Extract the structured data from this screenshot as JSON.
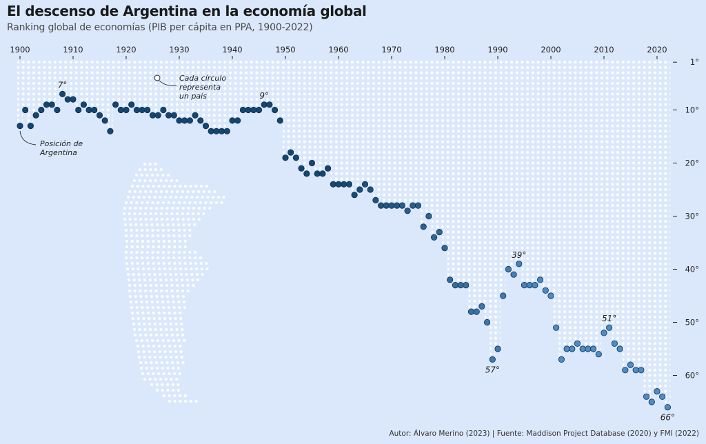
{
  "header": {
    "title": "El descenso de Argentina en la economía global",
    "subtitle": "Ranking global de economías (PIB per cápita en PPA, 1900-2022)"
  },
  "footer": {
    "credit": "Autor: Álvaro Merino (2023) | Fuente: Maddison Project Database (2020) y FMI (2022)"
  },
  "annotations": {
    "circle_note": [
      "Cada círculo",
      "representa",
      "un país"
    ],
    "position_note": [
      "Posición de",
      "Argentina"
    ]
  },
  "colors": {
    "background": "#dbe8fb",
    "grid_dot": "#ffffff",
    "early": "#15466f",
    "late": "#4d8cc8",
    "stroke": "#0d2d4d"
  },
  "chart_data": {
    "type": "scatter",
    "title": "El descenso de Argentina en la economía global",
    "subtitle": "Ranking global de economías (PIB per cápita en PPA, 1900-2022)",
    "xlabel": "",
    "ylabel": "",
    "xlim": [
      1900,
      2022
    ],
    "ylim": [
      1,
      66
    ],
    "y_inverted": true,
    "x_ticks": [
      1900,
      1910,
      1920,
      1930,
      1940,
      1950,
      1960,
      1970,
      1980,
      1990,
      2000,
      2010,
      2020
    ],
    "y_ticks": [
      1,
      10,
      20,
      30,
      40,
      50,
      60
    ],
    "y_tick_labels": [
      "1°",
      "10°",
      "20°",
      "30°",
      "40°",
      "50°",
      "60°"
    ],
    "series": [
      {
        "name": "Posición de Argentina",
        "points": [
          [
            1900,
            13
          ],
          [
            1901,
            10
          ],
          [
            1902,
            13
          ],
          [
            1903,
            11
          ],
          [
            1904,
            10
          ],
          [
            1905,
            9
          ],
          [
            1906,
            9
          ],
          [
            1907,
            10
          ],
          [
            1908,
            7
          ],
          [
            1909,
            8
          ],
          [
            1910,
            8
          ],
          [
            1911,
            10
          ],
          [
            1912,
            9
          ],
          [
            1913,
            10
          ],
          [
            1914,
            10
          ],
          [
            1915,
            11
          ],
          [
            1916,
            12
          ],
          [
            1917,
            14
          ],
          [
            1918,
            9
          ],
          [
            1919,
            10
          ],
          [
            1920,
            10
          ],
          [
            1921,
            9
          ],
          [
            1922,
            10
          ],
          [
            1923,
            10
          ],
          [
            1924,
            10
          ],
          [
            1925,
            11
          ],
          [
            1926,
            11
          ],
          [
            1927,
            10
          ],
          [
            1928,
            11
          ],
          [
            1929,
            11
          ],
          [
            1930,
            12
          ],
          [
            1931,
            12
          ],
          [
            1932,
            12
          ],
          [
            1933,
            11
          ],
          [
            1934,
            12
          ],
          [
            1935,
            13
          ],
          [
            1936,
            14
          ],
          [
            1937,
            14
          ],
          [
            1938,
            14
          ],
          [
            1939,
            14
          ],
          [
            1940,
            12
          ],
          [
            1941,
            12
          ],
          [
            1942,
            10
          ],
          [
            1943,
            10
          ],
          [
            1944,
            10
          ],
          [
            1945,
            10
          ],
          [
            1946,
            9
          ],
          [
            1947,
            9
          ],
          [
            1948,
            10
          ],
          [
            1949,
            12
          ],
          [
            1950,
            19
          ],
          [
            1951,
            18
          ],
          [
            1952,
            19
          ],
          [
            1953,
            21
          ],
          [
            1954,
            22
          ],
          [
            1955,
            20
          ],
          [
            1956,
            22
          ],
          [
            1957,
            22
          ],
          [
            1958,
            21
          ],
          [
            1959,
            24
          ],
          [
            1960,
            24
          ],
          [
            1961,
            24
          ],
          [
            1962,
            24
          ],
          [
            1963,
            26
          ],
          [
            1964,
            25
          ],
          [
            1965,
            24
          ],
          [
            1966,
            25
          ],
          [
            1967,
            27
          ],
          [
            1968,
            28
          ],
          [
            1969,
            28
          ],
          [
            1970,
            28
          ],
          [
            1971,
            28
          ],
          [
            1972,
            28
          ],
          [
            1973,
            29
          ],
          [
            1974,
            28
          ],
          [
            1975,
            28
          ],
          [
            1976,
            32
          ],
          [
            1977,
            30
          ],
          [
            1978,
            34
          ],
          [
            1979,
            33
          ],
          [
            1980,
            36
          ],
          [
            1981,
            42
          ],
          [
            1982,
            43
          ],
          [
            1983,
            43
          ],
          [
            1984,
            43
          ],
          [
            1985,
            48
          ],
          [
            1986,
            48
          ],
          [
            1987,
            47
          ],
          [
            1988,
            50
          ],
          [
            1989,
            57
          ],
          [
            1990,
            55
          ],
          [
            1991,
            45
          ],
          [
            1992,
            40
          ],
          [
            1993,
            41
          ],
          [
            1994,
            39
          ],
          [
            1995,
            43
          ],
          [
            1996,
            43
          ],
          [
            1997,
            43
          ],
          [
            1998,
            42
          ],
          [
            1999,
            44
          ],
          [
            2000,
            45
          ],
          [
            2001,
            51
          ],
          [
            2002,
            57
          ],
          [
            2003,
            55
          ],
          [
            2004,
            55
          ],
          [
            2005,
            54
          ],
          [
            2006,
            55
          ],
          [
            2007,
            55
          ],
          [
            2008,
            55
          ],
          [
            2009,
            56
          ],
          [
            2010,
            52
          ],
          [
            2011,
            51
          ],
          [
            2012,
            54
          ],
          [
            2013,
            55
          ],
          [
            2014,
            59
          ],
          [
            2015,
            58
          ],
          [
            2016,
            59
          ],
          [
            2017,
            59
          ],
          [
            2018,
            64
          ],
          [
            2019,
            65
          ],
          [
            2020,
            63
          ],
          [
            2021,
            64
          ],
          [
            2022,
            66
          ]
        ]
      }
    ],
    "point_labels": [
      {
        "x": 1908,
        "y": 7,
        "text": "7°"
      },
      {
        "x": 1946,
        "y": 9,
        "text": "9°"
      },
      {
        "x": 1989,
        "y": 57,
        "text": "57°"
      },
      {
        "x": 1994,
        "y": 39,
        "text": "39°"
      },
      {
        "x": 2011,
        "y": 51,
        "text": "51°"
      },
      {
        "x": 2022,
        "y": 66,
        "text": "66°"
      }
    ]
  }
}
